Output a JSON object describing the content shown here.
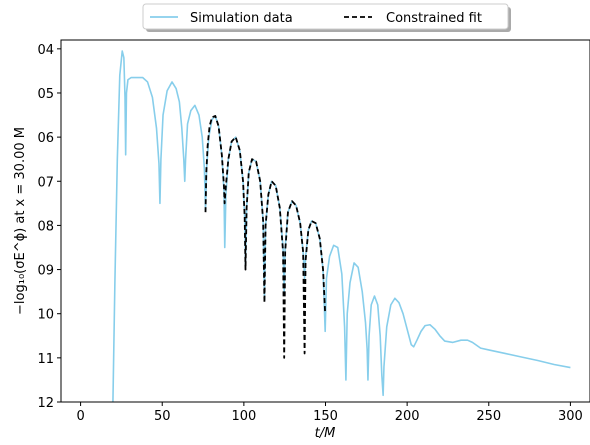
{
  "chart_data": {
    "type": "line",
    "xlabel": "t/M",
    "ylabel": "−log₁₀(σE^ϕ) at x = 30.00 M",
    "xlim": [
      -12,
      312
    ],
    "ylim": [
      3.8,
      12
    ],
    "y_inverted": true,
    "x_ticks": [
      0,
      50,
      100,
      150,
      200,
      250,
      300
    ],
    "x_tick_labels": [
      "0",
      "50",
      "100",
      "150",
      "200",
      "250",
      "300"
    ],
    "y_ticks": [
      4,
      5,
      6,
      7,
      8,
      9,
      10,
      11,
      12
    ],
    "y_tick_labels": [
      "04",
      "05",
      "06",
      "07",
      "08",
      "09",
      "10",
      "11",
      "12"
    ],
    "grid": false,
    "legend": {
      "placement": "top-center-outside",
      "columns": 2
    },
    "series": [
      {
        "name": "Simulation data",
        "color": "#87ceeb",
        "style": "solid",
        "points": [
          [
            19.8,
            12.0
          ],
          [
            21,
            9.3
          ],
          [
            22.5,
            6.5
          ],
          [
            24,
            4.6
          ],
          [
            25.5,
            4.05
          ],
          [
            26.5,
            4.2
          ],
          [
            27.2,
            5.1
          ],
          [
            27.6,
            6.4
          ],
          [
            28.1,
            5.0
          ],
          [
            29,
            4.7
          ],
          [
            31,
            4.65
          ],
          [
            38,
            4.65
          ],
          [
            41,
            4.75
          ],
          [
            44,
            5.1
          ],
          [
            46.5,
            5.8
          ],
          [
            48,
            6.6
          ],
          [
            48.6,
            7.5
          ],
          [
            49.2,
            6.5
          ],
          [
            50.5,
            5.5
          ],
          [
            53,
            4.95
          ],
          [
            56,
            4.75
          ],
          [
            58.5,
            4.9
          ],
          [
            60.5,
            5.2
          ],
          [
            62,
            5.8
          ],
          [
            63.2,
            6.5
          ],
          [
            63.8,
            7.0
          ],
          [
            64.3,
            6.5
          ],
          [
            65.5,
            5.7
          ],
          [
            67.5,
            5.4
          ],
          [
            70,
            5.28
          ],
          [
            72.5,
            5.5
          ],
          [
            74.5,
            6.0
          ],
          [
            75.8,
            6.7
          ],
          [
            76.5,
            7.65
          ],
          [
            77.2,
            6.7
          ],
          [
            78.5,
            6.0
          ],
          [
            80.5,
            5.6
          ],
          [
            82.5,
            5.52
          ],
          [
            84.5,
            5.75
          ],
          [
            86.5,
            6.4
          ],
          [
            87.8,
            7.2
          ],
          [
            88.3,
            8.5
          ],
          [
            89,
            7.3
          ],
          [
            90.5,
            6.5
          ],
          [
            92.5,
            6.1
          ],
          [
            95,
            6.0
          ],
          [
            97.5,
            6.3
          ],
          [
            99.5,
            7.0
          ],
          [
            100.5,
            7.8
          ],
          [
            101,
            8.9
          ],
          [
            101.7,
            7.6
          ],
          [
            103,
            6.8
          ],
          [
            105,
            6.5
          ],
          [
            107.5,
            6.55
          ],
          [
            110,
            7.0
          ],
          [
            111.8,
            7.9
          ],
          [
            112.6,
            9.7
          ],
          [
            113.3,
            8.0
          ],
          [
            115,
            7.3
          ],
          [
            117,
            7.0
          ],
          [
            119.5,
            7.1
          ],
          [
            122,
            7.6
          ],
          [
            124,
            8.5
          ],
          [
            124.7,
            9.5
          ],
          [
            125.3,
            8.5
          ],
          [
            127,
            7.7
          ],
          [
            129.5,
            7.45
          ],
          [
            132,
            7.55
          ],
          [
            134.5,
            7.95
          ],
          [
            136.3,
            8.6
          ],
          [
            137.2,
            9.2
          ],
          [
            137.8,
            8.7
          ],
          [
            139.5,
            8.1
          ],
          [
            141.5,
            7.9
          ],
          [
            144,
            7.95
          ],
          [
            146.5,
            8.3
          ],
          [
            148.5,
            9.0
          ],
          [
            149.8,
            10.4
          ],
          [
            150.6,
            9.2
          ],
          [
            152.5,
            8.7
          ],
          [
            155,
            8.45
          ],
          [
            157.5,
            8.5
          ],
          [
            160,
            9.1
          ],
          [
            161.7,
            10.3
          ],
          [
            162.5,
            11.5
          ],
          [
            163.3,
            10.0
          ],
          [
            165,
            9.3
          ],
          [
            167.5,
            8.85
          ],
          [
            170,
            8.95
          ],
          [
            172.5,
            9.5
          ],
          [
            174.5,
            10.2
          ],
          [
            175.5,
            10.8
          ],
          [
            176,
            11.5
          ],
          [
            176.7,
            10.5
          ],
          [
            178,
            9.8
          ],
          [
            180,
            9.6
          ],
          [
            182,
            9.8
          ],
          [
            183.5,
            10.5
          ],
          [
            184.5,
            11.4
          ],
          [
            185.3,
            11.85
          ],
          [
            185.8,
            11.2
          ],
          [
            187.5,
            10.3
          ],
          [
            190,
            9.8
          ],
          [
            192.5,
            9.65
          ],
          [
            195,
            9.75
          ],
          [
            197.5,
            10.0
          ],
          [
            200,
            10.35
          ],
          [
            202.5,
            10.7
          ],
          [
            204,
            10.75
          ],
          [
            206,
            10.6
          ],
          [
            208.5,
            10.4
          ],
          [
            211,
            10.27
          ],
          [
            214,
            10.25
          ],
          [
            217,
            10.35
          ],
          [
            220,
            10.5
          ],
          [
            223,
            10.62
          ],
          [
            228,
            10.65
          ],
          [
            233,
            10.6
          ],
          [
            237,
            10.6
          ],
          [
            240,
            10.65
          ],
          [
            245,
            10.78
          ],
          [
            250,
            10.82
          ],
          [
            260,
            10.9
          ],
          [
            270,
            10.98
          ],
          [
            280,
            11.06
          ],
          [
            290,
            11.15
          ],
          [
            300,
            11.22
          ]
        ]
      },
      {
        "name": "Constrained fit",
        "color": "#000000",
        "style": "dashed",
        "points": [
          [
            76.5,
            7.7
          ],
          [
            77,
            6.8
          ],
          [
            77.8,
            6.2
          ],
          [
            79,
            5.75
          ],
          [
            80.5,
            5.55
          ],
          [
            82.5,
            5.52
          ],
          [
            84.5,
            5.75
          ],
          [
            86.5,
            6.4
          ],
          [
            87.8,
            7.1
          ],
          [
            88.2,
            7.5
          ],
          [
            89,
            7.1
          ],
          [
            90.5,
            6.5
          ],
          [
            92.5,
            6.1
          ],
          [
            95,
            6.0
          ],
          [
            97.5,
            6.3
          ],
          [
            99.5,
            7.0
          ],
          [
            100.5,
            7.8
          ],
          [
            101,
            9.0
          ],
          [
            101.7,
            7.6
          ],
          [
            103,
            6.8
          ],
          [
            105,
            6.5
          ],
          [
            107.5,
            6.55
          ],
          [
            110,
            7.0
          ],
          [
            111.8,
            7.9
          ],
          [
            112.6,
            9.75
          ],
          [
            113.3,
            8.0
          ],
          [
            115,
            7.3
          ],
          [
            117,
            7.0
          ],
          [
            119.5,
            7.1
          ],
          [
            122,
            7.6
          ],
          [
            124,
            8.6
          ],
          [
            124.7,
            11.0
          ],
          [
            125.3,
            8.6
          ],
          [
            127,
            7.7
          ],
          [
            129.5,
            7.45
          ],
          [
            132,
            7.55
          ],
          [
            134.5,
            7.95
          ],
          [
            136.3,
            8.6
          ],
          [
            137.2,
            10.9
          ],
          [
            137.8,
            8.8
          ],
          [
            139.5,
            8.1
          ],
          [
            141.5,
            7.9
          ],
          [
            144,
            7.95
          ],
          [
            146.5,
            8.3
          ],
          [
            148.5,
            9.0
          ],
          [
            149.8,
            10.0
          ]
        ]
      }
    ]
  }
}
